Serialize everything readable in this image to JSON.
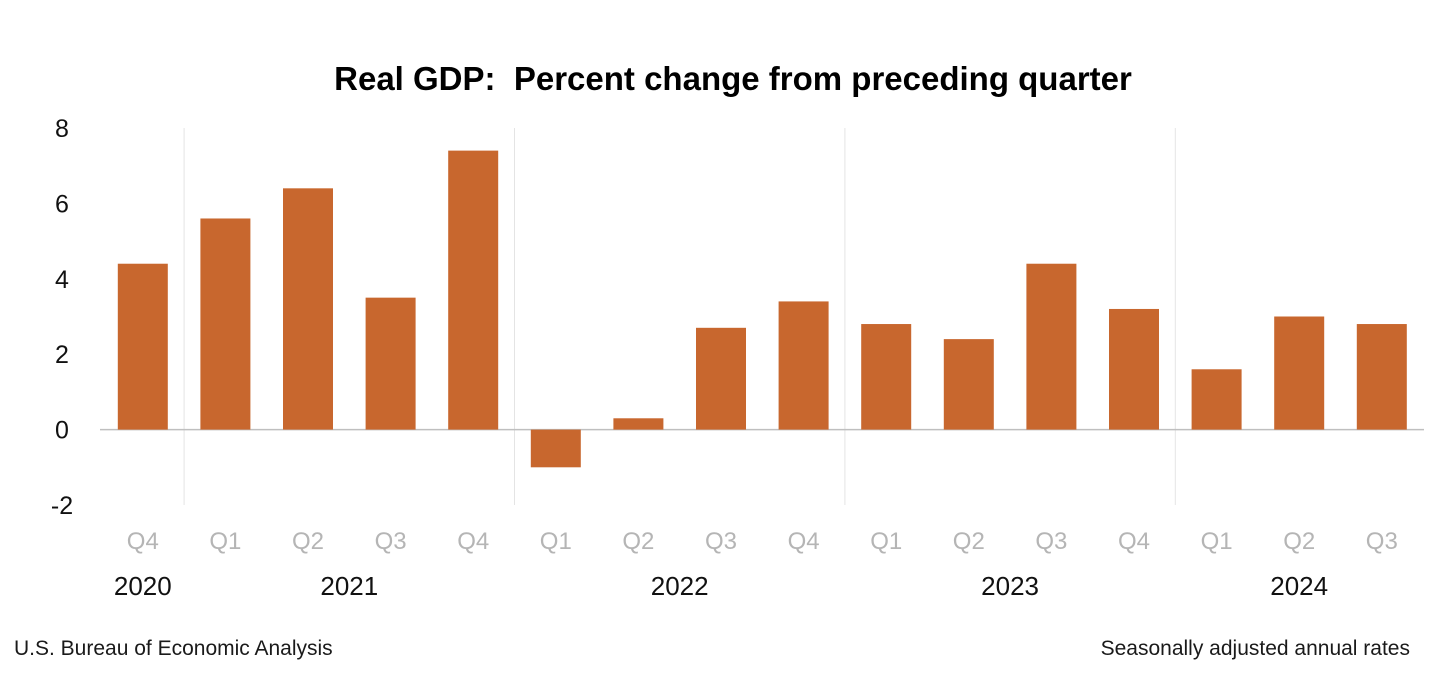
{
  "chart_data": {
    "type": "bar",
    "title": "Real GDP:  Percent change from preceding quarter",
    "source": "U.S. Bureau of Economic Analysis",
    "note": "Seasonally adjusted annual rates",
    "categories": [
      "Q4",
      "Q1",
      "Q2",
      "Q3",
      "Q4",
      "Q1",
      "Q2",
      "Q3",
      "Q4",
      "Q1",
      "Q2",
      "Q3",
      "Q4",
      "Q1",
      "Q2",
      "Q3"
    ],
    "years": [
      {
        "label": "2020",
        "quarters": 1
      },
      {
        "label": "2021",
        "quarters": 4
      },
      {
        "label": "2022",
        "quarters": 4
      },
      {
        "label": "2023",
        "quarters": 4
      },
      {
        "label": "2024",
        "quarters": 3
      }
    ],
    "values": [
      4.4,
      5.6,
      6.4,
      3.5,
      7.4,
      -1.0,
      0.3,
      2.7,
      3.4,
      2.8,
      2.4,
      4.4,
      3.2,
      1.6,
      3.0,
      2.8
    ],
    "ylim": [
      -2,
      8
    ],
    "yticks": [
      "-2",
      "0",
      "2",
      "4",
      "6",
      "8"
    ],
    "xlabel": "",
    "ylabel": "",
    "bar_color": "#c8672e",
    "grid": false,
    "legend": "none"
  }
}
